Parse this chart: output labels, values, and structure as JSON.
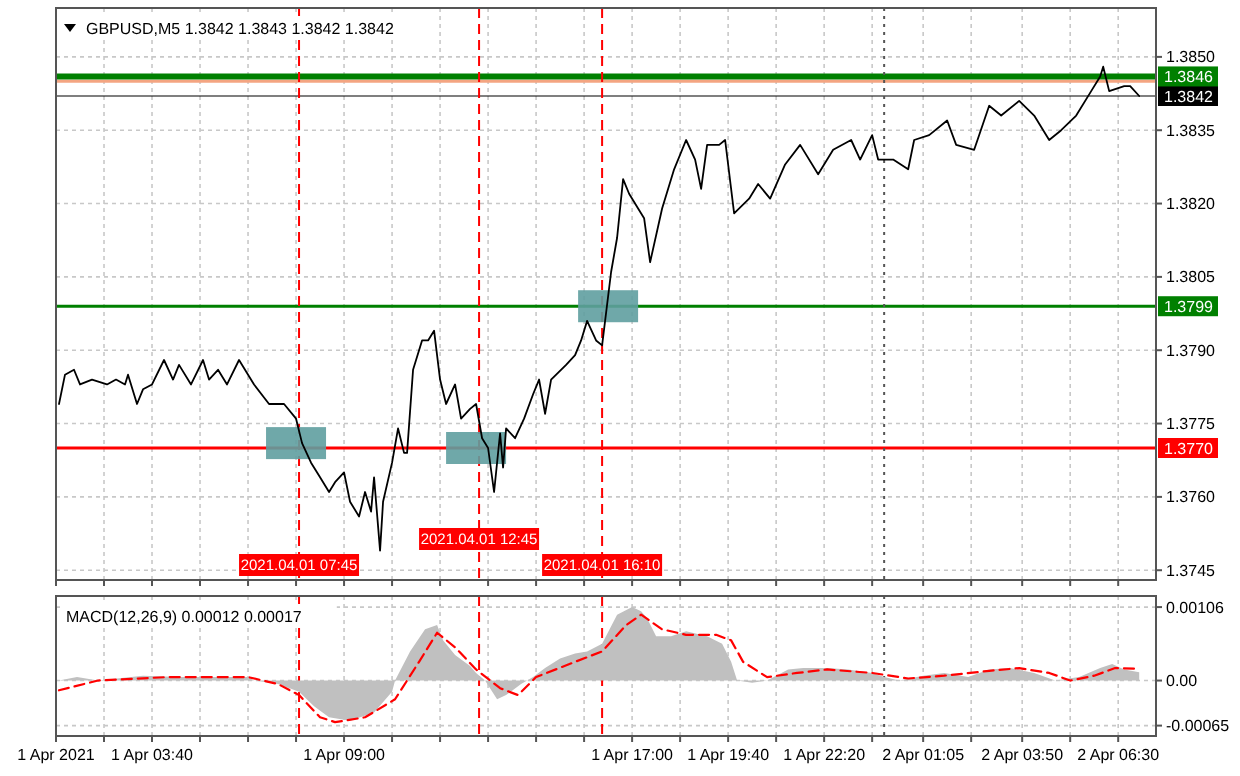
{
  "chart_data": [
    {
      "type": "line",
      "title": "GBPUSD,M5 1.3842 1.3843 1.3842 1.3842",
      "xlim": [
        "2021-04-01T01:00",
        "2021-04-02T07:33"
      ],
      "ylim": [
        1.3743,
        1.386
      ],
      "tick_labels": "y",
      "grid": true,
      "xticks": [
        {
          "value": "2021-04-01T01:00",
          "label": null
        },
        {
          "value": "2021-04-01T02:20",
          "label": null
        },
        {
          "value": "2021-04-01T03:40",
          "label": null
        },
        {
          "value": "2021-04-01T05:00",
          "label": null
        },
        {
          "value": "2021-04-01T06:20",
          "label": null
        },
        {
          "value": "2021-04-01T07:40",
          "label": null
        },
        {
          "value": "2021-04-01T09:00",
          "label": null
        },
        {
          "value": "2021-04-01T10:20",
          "label": null
        },
        {
          "value": "2021-04-01T11:40",
          "label": null
        },
        {
          "value": "2021-04-01T13:00",
          "label": null
        },
        {
          "value": "2021-04-01T14:20",
          "label": null
        },
        {
          "value": "2021-04-01T15:40",
          "label": null
        },
        {
          "value": "2021-04-01T17:00",
          "label": null
        },
        {
          "value": "2021-04-01T18:20",
          "label": null
        },
        {
          "value": "2021-04-01T19:40",
          "label": null
        },
        {
          "value": "2021-04-01T21:00",
          "label": null
        },
        {
          "value": "2021-04-01T22:20",
          "label": null
        },
        {
          "value": "2021-04-01T23:40",
          "label": null
        },
        {
          "value": "2021-04-02T01:05",
          "label": null
        },
        {
          "value": "2021-04-02T02:25",
          "label": null
        },
        {
          "value": "2021-04-02T03:50",
          "label": null
        },
        {
          "value": "2021-04-02T05:10",
          "label": null
        },
        {
          "value": "2021-04-02T06:30",
          "label": null
        }
      ],
      "yticks": [
        {
          "value": 1.3745,
          "label": "1.3745"
        },
        {
          "value": 1.376,
          "label": "1.3760"
        },
        {
          "value": 1.3775,
          "label": "1.3775"
        },
        {
          "value": 1.379,
          "label": "1.3790"
        },
        {
          "value": 1.3805,
          "label": "1.3805"
        },
        {
          "value": 1.382,
          "label": "1.3820"
        },
        {
          "value": 1.3835,
          "label": "1.3835"
        },
        {
          "value": 1.385,
          "label": "1.3850"
        }
      ],
      "series": [
        {
          "type": "scatter",
          "marker": "square",
          "color": "#5f9ea0",
          "x": [
            "2021-04-01T07:40",
            "2021-04-01T12:40",
            "2021-04-01T16:20"
          ],
          "values": [
            1.3771,
            1.377,
            1.3799
          ]
        },
        {
          "color": "#000000",
          "x": [
            "2021-04-01T01:05",
            "2021-04-01T01:15",
            "2021-04-01T01:30",
            "2021-04-01T01:40",
            "2021-04-01T02:00",
            "2021-04-01T02:25",
            "2021-04-01T02:40",
            "2021-04-01T02:55",
            "2021-04-01T03:00",
            "2021-04-01T03:15",
            "2021-04-01T03:25",
            "2021-04-01T03:40",
            "2021-04-01T04:00",
            "2021-04-01T04:15",
            "2021-04-01T04:25",
            "2021-04-01T04:45",
            "2021-04-01T05:05",
            "2021-04-01T05:15",
            "2021-04-01T05:30",
            "2021-04-01T05:45",
            "2021-04-01T06:05",
            "2021-04-01T06:30",
            "2021-04-01T06:55",
            "2021-04-01T07:20",
            "2021-04-01T07:40",
            "2021-04-01T07:50",
            "2021-04-01T08:05",
            "2021-04-01T08:20",
            "2021-04-01T08:35",
            "2021-04-01T08:45",
            "2021-04-01T09:00",
            "2021-04-01T09:10",
            "2021-04-01T09:25",
            "2021-04-01T09:35",
            "2021-04-01T09:45",
            "2021-04-01T09:50",
            "2021-04-01T10:00",
            "2021-04-01T10:05",
            "2021-04-01T10:20",
            "2021-04-01T10:30",
            "2021-04-01T10:40",
            "2021-04-01T10:45",
            "2021-04-01T10:55",
            "2021-04-01T11:10",
            "2021-04-01T11:20",
            "2021-04-01T11:30",
            "2021-04-01T11:40",
            "2021-04-01T11:50",
            "2021-04-01T12:05",
            "2021-04-01T12:15",
            "2021-04-01T12:30",
            "2021-04-01T12:40",
            "2021-04-01T12:50",
            "2021-04-01T13:00",
            "2021-04-01T13:10",
            "2021-04-01T13:20",
            "2021-04-01T13:25",
            "2021-04-01T13:30",
            "2021-04-01T13:45",
            "2021-04-01T14:00",
            "2021-04-01T14:15",
            "2021-04-01T14:25",
            "2021-04-01T14:35",
            "2021-04-01T14:45",
            "2021-04-01T15:10",
            "2021-04-01T15:25",
            "2021-04-01T15:35",
            "2021-04-01T15:45",
            "2021-04-01T16:00",
            "2021-04-01T16:10",
            "2021-04-01T16:15",
            "2021-04-01T16:25",
            "2021-04-01T16:35",
            "2021-04-01T16:45",
            "2021-04-01T16:55",
            "2021-04-01T17:10",
            "2021-04-01T17:20",
            "2021-04-01T17:30",
            "2021-04-01T17:50",
            "2021-04-01T18:10",
            "2021-04-01T18:30",
            "2021-04-01T18:45",
            "2021-04-01T18:55",
            "2021-04-01T19:05",
            "2021-04-01T19:25",
            "2021-04-01T19:35",
            "2021-04-01T19:50",
            "2021-04-01T20:15",
            "2021-04-01T20:30",
            "2021-04-01T20:50",
            "2021-04-01T21:15",
            "2021-04-01T21:40",
            "2021-04-01T22:10",
            "2021-04-01T22:35",
            "2021-04-01T23:05",
            "2021-04-01T23:20",
            "2021-04-01T23:40",
            "2021-04-01T23:50",
            "2021-04-02T00:15",
            "2021-04-02T00:40",
            "2021-04-02T00:50",
            "2021-04-02T01:15",
            "2021-04-02T01:45",
            "2021-04-02T02:00",
            "2021-04-02T02:30",
            "2021-04-02T02:55",
            "2021-04-02T03:15",
            "2021-04-02T03:45",
            "2021-04-02T04:10",
            "2021-04-02T04:35",
            "2021-04-02T04:55",
            "2021-04-02T05:20",
            "2021-04-02T05:45",
            "2021-04-02T06:00",
            "2021-04-02T06:05",
            "2021-04-02T06:15",
            "2021-04-02T06:40",
            "2021-04-02T06:50",
            "2021-04-02T07:05"
          ],
          "values": [
            1.3779,
            1.3785,
            1.3786,
            1.3783,
            1.3784,
            1.3783,
            1.3784,
            1.3783,
            1.3785,
            1.3779,
            1.3782,
            1.3783,
            1.3788,
            1.3784,
            1.3787,
            1.3783,
            1.3788,
            1.3784,
            1.3786,
            1.3783,
            1.3788,
            1.3783,
            1.3779,
            1.3779,
            1.3776,
            1.3771,
            1.3767,
            1.3764,
            1.3761,
            1.3763,
            1.3765,
            1.3759,
            1.3756,
            1.3761,
            1.3757,
            1.3764,
            1.3749,
            1.3759,
            1.3767,
            1.3774,
            1.3769,
            1.3769,
            1.3786,
            1.3792,
            1.3792,
            1.3794,
            1.3784,
            1.3779,
            1.3783,
            1.3776,
            1.3778,
            1.3779,
            1.3772,
            1.377,
            1.3761,
            1.3773,
            1.3766,
            1.3774,
            1.3772,
            1.3776,
            1.3781,
            1.3784,
            1.3777,
            1.3784,
            1.3787,
            1.3789,
            1.3792,
            1.3796,
            1.3792,
            1.3791,
            1.3796,
            1.3806,
            1.3813,
            1.3825,
            1.3822,
            1.3819,
            1.3817,
            1.3808,
            1.3819,
            1.3827,
            1.3833,
            1.3829,
            1.3823,
            1.3832,
            1.3832,
            1.3833,
            1.3818,
            1.3821,
            1.3824,
            1.3821,
            1.3828,
            1.3832,
            1.3826,
            1.3831,
            1.3833,
            1.3829,
            1.3834,
            1.3829,
            1.3829,
            1.3827,
            1.3833,
            1.3834,
            1.3837,
            1.3832,
            1.3831,
            1.384,
            1.3838,
            1.3841,
            1.3838,
            1.3833,
            1.3835,
            1.3838,
            1.3843,
            1.3846,
            1.3848,
            1.3843,
            1.3844,
            1.3844,
            1.3842
          ]
        }
      ],
      "ref_lines": [
        {
          "axis": "y",
          "value": 1.3845,
          "color": "#f4a582",
          "line_style": "solid"
        },
        {
          "axis": "y",
          "value": 1.3842,
          "label": "1.3842",
          "color": "#000000",
          "line_style": "solid"
        },
        {
          "axis": "y",
          "value": 1.3846,
          "label": "1.3846",
          "color": "#008000",
          "line_style": "solid"
        },
        {
          "axis": "y",
          "value": 1.3799,
          "label": "1.3799",
          "color": "#008000",
          "line_style": "solid"
        },
        {
          "axis": "y",
          "value": 1.377,
          "label": "1.3770",
          "color": "#ff0000",
          "line_style": "solid"
        },
        {
          "axis": "x",
          "value": "2021-04-01T07:45",
          "label": "2021.04.01 07:45",
          "color": "#ff0000",
          "line_style": "dashed"
        },
        {
          "axis": "x",
          "value": "2021-04-01T12:45",
          "label": "2021.04.01 12:45",
          "color": "#ff0000",
          "line_style": "dashed"
        },
        {
          "axis": "x",
          "value": "2021-04-01T16:10",
          "label": "2021.04.01 16:10",
          "color": "#ff0000",
          "line_style": "dashed"
        },
        {
          "axis": "x",
          "value": "2021-04-02T00:00",
          "color": "#555555",
          "line_style": "dotted"
        }
      ]
    },
    {
      "type": "area",
      "title": "MACD(12,26,9) 0.00012 0.00017",
      "xlim": [
        "2021-04-01T01:00",
        "2021-04-02T07:33"
      ],
      "ylim": [
        -0.0008,
        0.00122
      ],
      "grid": true,
      "xticks": [
        {
          "value": "2021-04-01T01:00",
          "label": "1 Apr 2021"
        },
        {
          "value": "2021-04-01T02:20",
          "label": null
        },
        {
          "value": "2021-04-01T03:40",
          "label": "1 Apr 03:40"
        },
        {
          "value": "2021-04-01T05:00",
          "label": null
        },
        {
          "value": "2021-04-01T06:20",
          "label": null
        },
        {
          "value": "2021-04-01T07:40",
          "label": null
        },
        {
          "value": "2021-04-01T09:00",
          "label": "1 Apr 09:00"
        },
        {
          "value": "2021-04-01T10:20",
          "label": null
        },
        {
          "value": "2021-04-01T11:40",
          "label": null
        },
        {
          "value": "2021-04-01T13:00",
          "label": null
        },
        {
          "value": "2021-04-01T14:20",
          "label": null
        },
        {
          "value": "2021-04-01T15:40",
          "label": null
        },
        {
          "value": "2021-04-01T17:00",
          "label": "1 Apr 17:00"
        },
        {
          "value": "2021-04-01T18:20",
          "label": null
        },
        {
          "value": "2021-04-01T19:40",
          "label": "1 Apr 19:40"
        },
        {
          "value": "2021-04-01T21:00",
          "label": null
        },
        {
          "value": "2021-04-01T22:20",
          "label": "1 Apr 22:20"
        },
        {
          "value": "2021-04-01T23:40",
          "label": null
        },
        {
          "value": "2021-04-02T01:05",
          "label": "2 Apr 01:05"
        },
        {
          "value": "2021-04-02T02:25",
          "label": null
        },
        {
          "value": "2021-04-02T03:50",
          "label": "2 Apr 03:50"
        },
        {
          "value": "2021-04-02T05:10",
          "label": null
        },
        {
          "value": "2021-04-02T06:30",
          "label": "2 Apr 06:30"
        }
      ],
      "yticks": [
        {
          "value": -0.00065,
          "label": "-0.00065"
        },
        {
          "value": 0,
          "label": "0.00"
        },
        {
          "value": 0.00106,
          "label": "0.00106"
        }
      ],
      "series": [
        {
          "color": "#c0c0c0",
          "x": [
            "2021-04-01T01:05",
            "2021-04-01T01:35",
            "2021-04-01T02:10",
            "2021-04-01T03:25",
            "2021-04-01T04:25",
            "2021-04-01T06:20",
            "2021-04-01T06:30",
            "2021-04-01T07:10",
            "2021-04-01T07:45",
            "2021-04-01T08:10",
            "2021-04-01T08:35",
            "2021-04-01T09:10",
            "2021-04-01T09:50",
            "2021-04-01T10:20",
            "2021-04-01T10:25",
            "2021-04-01T10:50",
            "2021-04-01T11:15",
            "2021-04-01T11:35",
            "2021-04-01T11:45",
            "2021-04-01T12:05",
            "2021-04-01T12:30",
            "2021-04-01T12:40",
            "2021-04-01T12:55",
            "2021-04-01T13:15",
            "2021-04-01T13:30",
            "2021-04-01T13:55",
            "2021-04-01T14:15",
            "2021-04-01T14:35",
            "2021-04-01T15:00",
            "2021-04-01T15:25",
            "2021-04-01T15:45",
            "2021-04-01T16:10",
            "2021-04-01T16:35",
            "2021-04-01T17:00",
            "2021-04-01T17:15",
            "2021-04-01T17:25",
            "2021-04-01T17:40",
            "2021-04-01T18:05",
            "2021-04-01T18:30",
            "2021-04-01T19:05",
            "2021-04-01T19:30",
            "2021-04-01T19:45",
            "2021-04-01T19:55",
            "2021-04-01T20:20",
            "2021-04-01T20:45",
            "2021-04-01T21:20",
            "2021-04-01T21:45",
            "2021-04-01T22:25",
            "2021-04-01T23:00",
            "2021-04-01T23:40",
            "2021-04-02T00:00",
            "2021-04-02T00:25",
            "2021-04-02T01:05",
            "2021-04-02T01:40",
            "2021-04-02T02:20",
            "2021-04-02T02:55",
            "2021-04-02T03:30",
            "2021-04-02T04:10",
            "2021-04-02T04:45",
            "2021-04-02T05:25",
            "2021-04-02T06:00",
            "2021-04-02T06:20",
            "2021-04-02T06:40",
            "2021-04-02T07:05"
          ],
          "values": [
            0,
            5e-05,
            0,
            7e-05,
            5e-05,
            5e-05,
            0,
            -5e-05,
            -0.00016,
            -0.00037,
            -0.00053,
            -0.00058,
            -0.00046,
            -0.00016,
            0,
            0.00042,
            0.00074,
            0.0008,
            0.00058,
            0.00037,
            0.00021,
            0.00011,
            0,
            -0.00027,
            -0.00021,
            -5e-05,
            5e-05,
            0.00018,
            0.00032,
            0.00039,
            0.00042,
            0.00053,
            0.00095,
            0.00106,
            0.001,
            0.0009,
            0.00064,
            0.00064,
            0.00071,
            0.00064,
            0.00053,
            0.00027,
            0,
            -3e-05,
            0,
            0.00016,
            0.00018,
            0.00018,
            0.00016,
            0.00011,
            5e-05,
            0,
            7e-05,
            0.00011,
            5e-05,
            0.00016,
            0.00018,
            0.00011,
            0,
            5e-05,
            0.00018,
            0.00024,
            0.00016,
            0.00012
          ]
        },
        {
          "type": "line",
          "color": "#ff0000",
          "line_style": "dashed",
          "x": [
            "2021-04-01T01:05",
            "2021-04-01T02:10",
            "2021-04-01T04:05",
            "2021-04-01T06:20",
            "2021-04-01T07:10",
            "2021-04-01T07:45",
            "2021-04-01T08:20",
            "2021-04-01T08:45",
            "2021-04-01T09:35",
            "2021-04-01T10:25",
            "2021-04-01T11:05",
            "2021-04-01T11:35",
            "2021-04-01T12:05",
            "2021-04-01T12:40",
            "2021-04-01T13:20",
            "2021-04-01T13:50",
            "2021-04-01T14:20",
            "2021-04-01T15:25",
            "2021-04-01T16:10",
            "2021-04-01T16:50",
            "2021-04-01T17:15",
            "2021-04-01T17:50",
            "2021-04-01T18:30",
            "2021-04-01T19:20",
            "2021-04-01T19:45",
            "2021-04-01T20:05",
            "2021-04-01T20:45",
            "2021-04-01T21:35",
            "2021-04-01T22:25",
            "2021-04-01T23:40",
            "2021-04-02T00:40",
            "2021-04-02T01:40",
            "2021-04-02T02:55",
            "2021-04-02T03:45",
            "2021-04-02T04:35",
            "2021-04-02T05:10",
            "2021-04-02T05:50",
            "2021-04-02T06:25",
            "2021-04-02T07:05"
          ],
          "values": [
            -0.00014,
            0,
            5e-05,
            5e-05,
            -5e-05,
            -0.00021,
            -0.00053,
            -0.0006,
            -0.00053,
            -0.00027,
            0.00027,
            0.00069,
            0.00048,
            0.00016,
            -0.00011,
            -0.00021,
            5e-05,
            0.00027,
            0.00042,
            0.0008,
            0.00095,
            0.00074,
            0.00066,
            0.00066,
            0.00058,
            0.00027,
            5e-05,
            0.00011,
            0.00016,
            0.00011,
            3e-05,
            7e-05,
            0.00014,
            0.00018,
            0.00011,
            0,
            7e-05,
            0.00018,
            0.00017
          ]
        }
      ],
      "ref_lines": [
        {
          "axis": "x",
          "value": "2021-04-01T07:45",
          "color": "#ff0000",
          "line_style": "dashed"
        },
        {
          "axis": "x",
          "value": "2021-04-01T12:45",
          "color": "#ff0000",
          "line_style": "dashed"
        },
        {
          "axis": "x",
          "value": "2021-04-01T16:10",
          "color": "#ff0000",
          "line_style": "dashed"
        },
        {
          "axis": "x",
          "value": "2021-04-02T00:00",
          "color": "#555555",
          "line_style": "dotted"
        }
      ]
    }
  ]
}
